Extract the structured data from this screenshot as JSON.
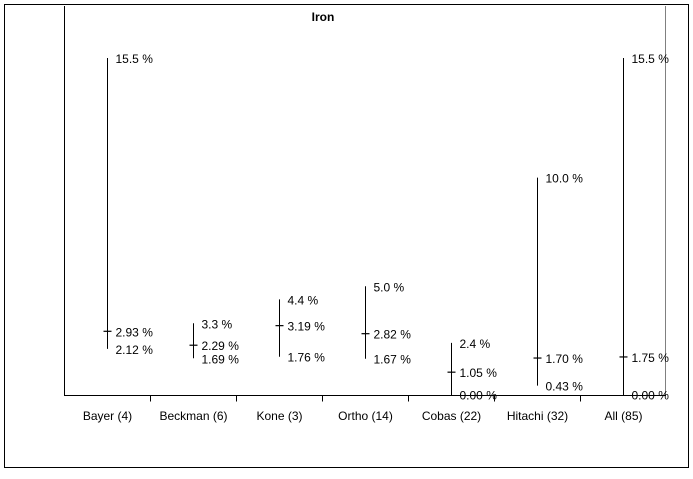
{
  "chart_data": {
    "type": "range",
    "title": "Iron",
    "xlabel": "",
    "ylabel": "",
    "ylim": [
      0,
      16.1
    ],
    "unit_suffix": " %",
    "categories": [
      {
        "label": "Bayer (4)",
        "max": 15.5,
        "mid": 2.93,
        "min": 2.12,
        "max_label": "15.5 %",
        "mid_label": "2.93 %",
        "min_label": "2.12 %"
      },
      {
        "label": "Beckman (6)",
        "max": 3.3,
        "mid": 2.29,
        "min": 1.69,
        "max_label": "3.3 %",
        "mid_label": "2.29 %",
        "min_label": "1.69 %"
      },
      {
        "label": "Kone (3)",
        "max": 4.4,
        "mid": 3.19,
        "min": 1.76,
        "max_label": "4.4 %",
        "mid_label": "3.19 %",
        "min_label": "1.76 %"
      },
      {
        "label": "Ortho (14)",
        "max": 5.0,
        "mid": 2.82,
        "min": 1.67,
        "max_label": "5.0 %",
        "mid_label": "2.82 %",
        "min_label": "1.67 %"
      },
      {
        "label": "Cobas (22)",
        "max": 2.4,
        "mid": 1.05,
        "min": 0.0,
        "max_label": "2.4 %",
        "mid_label": "1.05 %",
        "min_label": "0.00 %"
      },
      {
        "label": "Hitachi (32)",
        "max": 10.0,
        "mid": 1.7,
        "min": 0.43,
        "max_label": "10.0 %",
        "mid_label": "1.70 %",
        "min_label": "0.43 %"
      },
      {
        "label": "All (85)",
        "max": 15.5,
        "mid": 1.75,
        "min": 0.0,
        "max_label": "15.5 %",
        "mid_label": "1.75 %",
        "min_label": "0.00 %"
      }
    ],
    "grid": false,
    "legend": "none",
    "colors": {
      "line": "#000000",
      "frame": "#000000",
      "background": "#ffffff"
    }
  }
}
